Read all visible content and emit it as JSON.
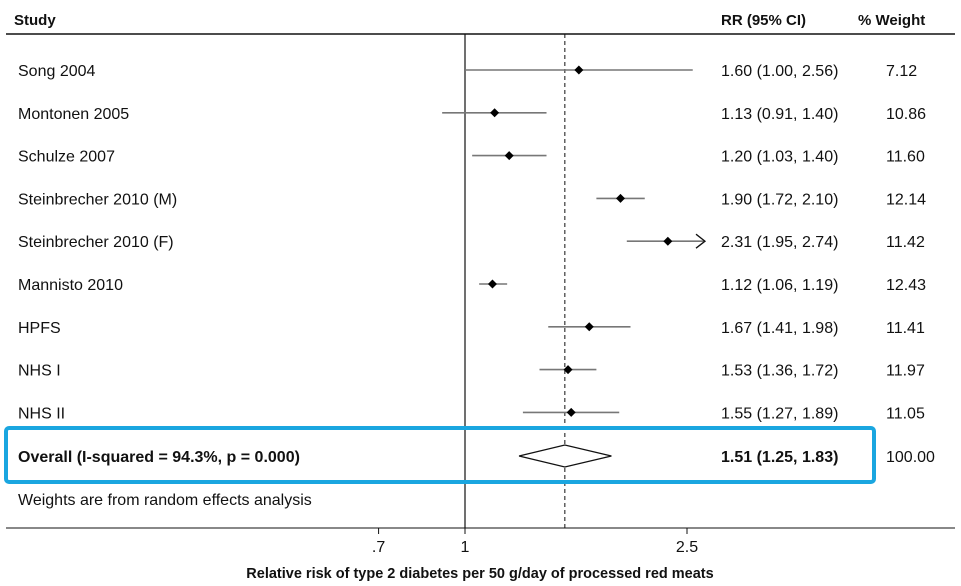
{
  "header": {
    "study_label": "Study",
    "rr_label": "RR (95% CI)",
    "weight_label": "% Weight"
  },
  "footer_note": "Weights are from random effects analysis",
  "colors": {
    "highlight": "#1aa6e0",
    "ci_line": "#777777",
    "marker": "#000000"
  },
  "chart_data": {
    "type": "forest",
    "xlabel": "Relative risk of type 2 diabetes per 50 g/day of processed red meats",
    "x_scale": "log",
    "xlim": [
      0.6,
      2.5
    ],
    "null_line": 1,
    "x_ticks": [
      {
        "value": 0.7,
        "label": ".7"
      },
      {
        "value": 1,
        "label": "1"
      },
      {
        "value": 2.5,
        "label": "2.5"
      }
    ],
    "studies": [
      {
        "name": "Song 2004",
        "rr": 1.6,
        "lo": 1.0,
        "hi": 2.56,
        "rr_text": "1.60 (1.00, 2.56)",
        "weight": "7.12"
      },
      {
        "name": "Montonen 2005",
        "rr": 1.13,
        "lo": 0.91,
        "hi": 1.4,
        "rr_text": "1.13 (0.91, 1.40)",
        "weight": "10.86"
      },
      {
        "name": "Schulze 2007",
        "rr": 1.2,
        "lo": 1.03,
        "hi": 1.4,
        "rr_text": "1.20 (1.03, 1.40)",
        "weight": "11.60"
      },
      {
        "name": "Steinbrecher 2010 (M)",
        "rr": 1.9,
        "lo": 1.72,
        "hi": 2.1,
        "rr_text": "1.90 (1.72, 2.10)",
        "weight": "12.14"
      },
      {
        "name": "Steinbrecher 2010 (F)",
        "rr": 2.31,
        "lo": 1.95,
        "hi": 2.74,
        "rr_text": "2.31 (1.95, 2.74)",
        "weight": "11.42",
        "arrow_right": true
      },
      {
        "name": "Mannisto 2010",
        "rr": 1.12,
        "lo": 1.06,
        "hi": 1.19,
        "rr_text": "1.12 (1.06, 1.19)",
        "weight": "12.43"
      },
      {
        "name": "HPFS",
        "rr": 1.67,
        "lo": 1.41,
        "hi": 1.98,
        "rr_text": "1.67 (1.41, 1.98)",
        "weight": "11.41"
      },
      {
        "name": "NHS I",
        "rr": 1.53,
        "lo": 1.36,
        "hi": 1.72,
        "rr_text": "1.53 (1.36, 1.72)",
        "weight": "11.97"
      },
      {
        "name": "NHS II",
        "rr": 1.55,
        "lo": 1.27,
        "hi": 1.89,
        "rr_text": "1.55 (1.27, 1.89)",
        "weight": "11.05"
      }
    ],
    "overall": {
      "label": "Overall  (I-squared = 94.3%, p = 0.000)",
      "rr": 1.51,
      "lo": 1.25,
      "hi": 1.83,
      "rr_text": "1.51 (1.25, 1.83)",
      "weight": "100.00"
    }
  }
}
